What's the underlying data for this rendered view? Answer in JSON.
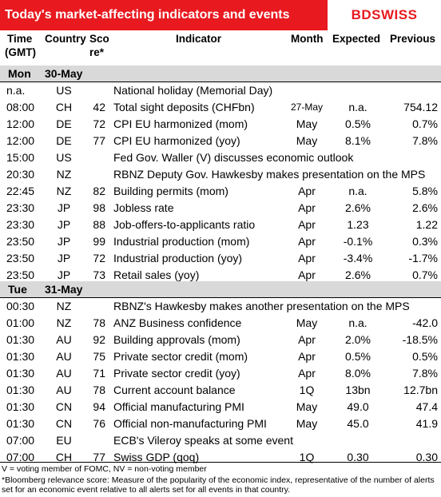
{
  "header": {
    "title": "Today's market-affecting indicators and events",
    "logo": "BDSWISS"
  },
  "columns": {
    "time_l1": "Time",
    "time_l2": "(GMT)",
    "country": "Country",
    "score_l1": "Sco",
    "score_l2": "re*",
    "indicator": "Indicator",
    "month": "Month",
    "expected": "Expected",
    "previous": "Previous"
  },
  "sections": [
    {
      "day": "Mon",
      "date": "30-May"
    },
    {
      "day": "Tue",
      "date": "31-May"
    }
  ],
  "rows_mon": [
    {
      "time": "n.a.",
      "country": "US",
      "score": "",
      "indicator": "National holiday (Memorial Day)",
      "month": "",
      "expected": "",
      "previous": ""
    },
    {
      "time": "08:00",
      "country": "CH",
      "score": "42",
      "indicator": "Total sight deposits (CHFbn)",
      "month": "27-May",
      "expected": "n.a.",
      "previous": "754.12"
    },
    {
      "time": "12:00",
      "country": "DE",
      "score": "72",
      "indicator": "CPI EU harmonized (mom)",
      "month": "May",
      "expected": "0.5%",
      "previous": "0.7%"
    },
    {
      "time": "12:00",
      "country": "DE",
      "score": "77",
      "indicator": "CPI EU harmonized (yoy)",
      "month": "May",
      "expected": "8.1%",
      "previous": "7.8%"
    },
    {
      "time": "15:00",
      "country": "US",
      "score": "",
      "indicator": "Fed Gov. Waller (V) discusses economic outlook",
      "month": "",
      "expected": "",
      "previous": ""
    },
    {
      "time": "20:30",
      "country": "NZ",
      "score": "",
      "indicator": "RBNZ Deputy Gov. Hawkesby makes presentation on the MPS",
      "month": "",
      "expected": "",
      "previous": ""
    },
    {
      "time": "22:45",
      "country": "NZ",
      "score": "82",
      "indicator": "Building permits (mom)",
      "month": "Apr",
      "expected": "n.a.",
      "previous": "5.8%"
    },
    {
      "time": "23:30",
      "country": "JP",
      "score": "98",
      "indicator": "Jobless rate",
      "month": "Apr",
      "expected": "2.6%",
      "previous": "2.6%"
    },
    {
      "time": "23:30",
      "country": "JP",
      "score": "88",
      "indicator": "Job-offers-to-applicants ratio",
      "month": "Apr",
      "expected": "1.23",
      "previous": "1.22"
    },
    {
      "time": "23:50",
      "country": "JP",
      "score": "99",
      "indicator": "Industrial production (mom)",
      "month": "Apr",
      "expected": "-0.1%",
      "previous": "0.3%"
    },
    {
      "time": "23:50",
      "country": "JP",
      "score": "72",
      "indicator": "Industrial production (yoy)",
      "month": "Apr",
      "expected": "-3.4%",
      "previous": "-1.7%"
    },
    {
      "time": "23:50",
      "country": "JP",
      "score": "73",
      "indicator": "Retail sales (yoy)",
      "month": "Apr",
      "expected": "2.6%",
      "previous": "0.7%"
    }
  ],
  "rows_tue": [
    {
      "time": "00:30",
      "country": "NZ",
      "score": "",
      "indicator": "RBNZ's Hawkesby makes another presentation on the MPS",
      "month": "",
      "expected": "",
      "previous": ""
    },
    {
      "time": "01:00",
      "country": "NZ",
      "score": "78",
      "indicator": "ANZ Business confidence",
      "month": "May",
      "expected": "n.a.",
      "previous": "-42.0"
    },
    {
      "time": "01:30",
      "country": "AU",
      "score": "92",
      "indicator": "Building approvals (mom)",
      "month": "Apr",
      "expected": "2.0%",
      "previous": "-18.5%"
    },
    {
      "time": "01:30",
      "country": "AU",
      "score": "75",
      "indicator": "Private sector credit (mom)",
      "month": "Apr",
      "expected": "0.5%",
      "previous": "0.5%"
    },
    {
      "time": "01:30",
      "country": "AU",
      "score": "71",
      "indicator": "Private sector credit (yoy)",
      "month": "Apr",
      "expected": "8.0%",
      "previous": "7.8%"
    },
    {
      "time": "01:30",
      "country": "AU",
      "score": "78",
      "indicator": "Current account balance",
      "month": "1Q",
      "expected": "13bn",
      "previous": "12.7bn"
    },
    {
      "time": "01:30",
      "country": "CN",
      "score": "94",
      "indicator": "Official manufacturing PMI",
      "month": "May",
      "expected": "49.0",
      "previous": "47.4"
    },
    {
      "time": "01:30",
      "country": "CN",
      "score": "76",
      "indicator": "Official non-manufacturing PMI",
      "month": "May",
      "expected": "45.0",
      "previous": "41.9"
    },
    {
      "time": "07:00",
      "country": "EU",
      "score": "",
      "indicator": "ECB's Vileroy speaks at some event",
      "month": "",
      "expected": "",
      "previous": ""
    },
    {
      "time": "07:00",
      "country": "CH",
      "score": "77",
      "indicator": "Swiss GDP (qoq)",
      "month": "1Q",
      "expected": "0.30",
      "previous": "0.30"
    }
  ],
  "footnotes": {
    "line1": "V = voting member of FOMC, NV = non-voting member",
    "line2": "*Bloomberg relevance score:  Measure of the popularity of the economic index, representative of the number of alerts set for an economic event relative to all alerts set for all events in that country."
  }
}
